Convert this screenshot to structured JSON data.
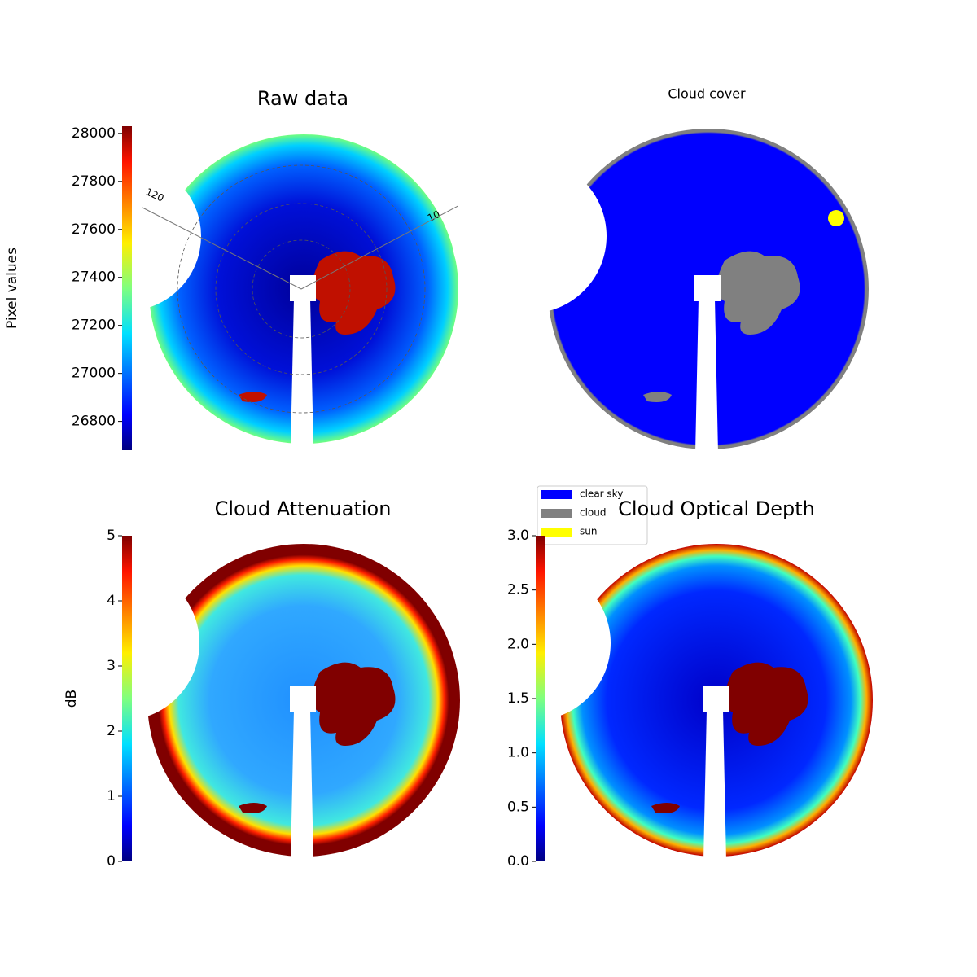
{
  "chart_data": [
    {
      "type": "image",
      "title": "Raw data",
      "annotations": [
        "120",
        "10"
      ],
      "colorbar": {
        "label": "Pixel values",
        "colormap": "jet",
        "lim": [
          26680,
          28030
        ],
        "ticks": [
          26800,
          27000,
          27200,
          27400,
          27600,
          27800,
          28000
        ]
      }
    },
    {
      "type": "image",
      "title": "Cloud cover",
      "legend": [
        {
          "name": "clear sky",
          "color": "#0000ff"
        },
        {
          "name": "cloud",
          "color": "#808080"
        },
        {
          "name": "sun",
          "color": "#ffff00"
        }
      ]
    },
    {
      "type": "image",
      "title": "Cloud Attenuation",
      "colorbar": {
        "label": "dB",
        "colormap": "jet",
        "lim": [
          0,
          5
        ],
        "ticks": [
          0,
          1,
          2,
          3,
          4,
          5
        ]
      }
    },
    {
      "type": "image",
      "title": "Cloud Optical Depth",
      "colorbar": {
        "colormap": "jet",
        "lim": [
          0,
          3
        ],
        "ticks": [
          {
            "value": 0,
            "label": "0.0"
          },
          0.5,
          {
            "value": 1,
            "label": "1.0"
          },
          1.5,
          {
            "value": 2,
            "label": "2.0"
          },
          2.5,
          {
            "value": 3,
            "label": "3.0"
          }
        ]
      }
    }
  ]
}
